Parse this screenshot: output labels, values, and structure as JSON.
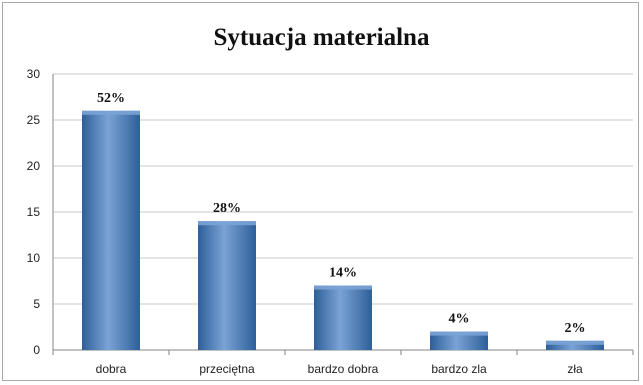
{
  "chart_data": {
    "type": "bar",
    "title": "Sytuacja materialna",
    "xlabel": "",
    "ylabel": "",
    "categories": [
      "dobra",
      "przeciętna",
      "bardzo dobra",
      "bardzo zla",
      "zła"
    ],
    "values": [
      26,
      14,
      7,
      2,
      1
    ],
    "data_labels": [
      "52%",
      "28%",
      "14%",
      "4%",
      "2%"
    ],
    "ylim": [
      0,
      30
    ],
    "yticks": [
      0,
      5,
      10,
      15,
      20,
      25,
      30
    ],
    "grid": true,
    "legend": "none",
    "colors": {
      "bar": "#4f81bd",
      "bar_light": "#7aa3d6",
      "bar_dark": "#2e5f99",
      "grid": "#c8c8c8",
      "axis": "#868686"
    }
  }
}
